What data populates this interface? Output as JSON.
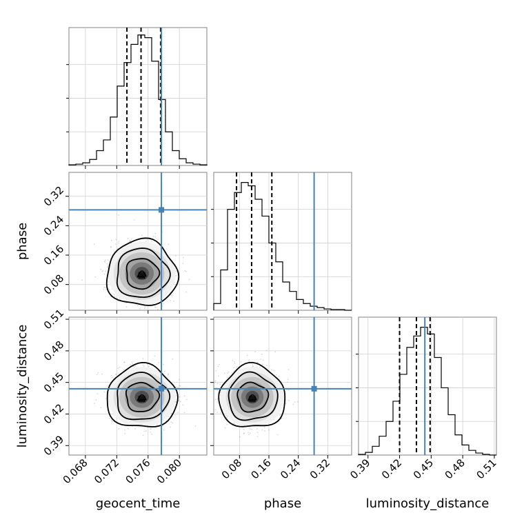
{
  "chart_data": {
    "type": "corner",
    "parameters": [
      {
        "name": "geocent_time",
        "label": "geocent_time",
        "range": [
          0.0659,
          0.0835
        ],
        "ticks": [
          0.068,
          0.072,
          0.076,
          0.08
        ],
        "tick_labels": [
          "0.068",
          "0.072",
          "0.076",
          "0.080"
        ],
        "injection": 0.0777,
        "quantiles": [
          0.0733,
          0.0751,
          0.0776
        ]
      },
      {
        "name": "phase",
        "label": "phase",
        "range": [
          0.01,
          0.385
        ],
        "ticks": [
          0.08,
          0.16,
          0.24,
          0.32
        ],
        "tick_labels": [
          "0.08",
          "0.16",
          "0.24",
          "0.32"
        ],
        "injection": 0.283,
        "quantiles": [
          0.072,
          0.113,
          0.168
        ]
      },
      {
        "name": "luminosity_distance",
        "label": "luminosity_distance",
        "range": [
          0.381,
          0.512
        ],
        "ticks": [
          0.39,
          0.42,
          0.45,
          0.48,
          0.51
        ],
        "tick_labels": [
          "0.39",
          "0.42",
          "0.45",
          "0.48",
          "0.51"
        ],
        "injection": 0.444,
        "quantiles": [
          0.42,
          0.436,
          0.449
        ]
      }
    ],
    "histograms": [
      {
        "parameter": "geocent_time",
        "bin_edges_range": [
          0.0659,
          0.0835
        ],
        "counts": [
          1,
          2,
          4,
          9,
          22,
          38,
          72,
          118,
          153,
          180,
          194,
          190,
          155,
          98,
          50,
          22,
          10,
          4,
          2,
          1
        ]
      },
      {
        "parameter": "phase",
        "bin_edges_range": [
          0.01,
          0.385
        ],
        "counts": [
          10,
          60,
          150,
          175,
          190,
          185,
          165,
          140,
          100,
          72,
          42,
          28,
          16,
          10,
          6,
          4,
          2,
          1,
          1,
          0
        ]
      },
      {
        "parameter": "luminosity_distance",
        "bin_edges_range": [
          0.381,
          0.512
        ],
        "counts": [
          1,
          4,
          13,
          28,
          50,
          80,
          120,
          160,
          177,
          190,
          180,
          145,
          100,
          60,
          30,
          15,
          7,
          3,
          1,
          0
        ]
      }
    ],
    "histogram_ylim": [
      0,
      205
    ],
    "posterior_2d": [
      {
        "x": "geocent_time",
        "y": "phase",
        "center": [
          0.0752,
          0.11
        ],
        "sigma": [
          0.0018,
          0.036
        ]
      },
      {
        "x": "geocent_time",
        "y": "luminosity_distance",
        "center": [
          0.0752,
          0.436
        ],
        "sigma": [
          0.0018,
          0.012
        ]
      },
      {
        "x": "phase",
        "y": "luminosity_distance",
        "center": [
          0.115,
          0.436
        ],
        "sigma": [
          0.036,
          0.012
        ]
      }
    ],
    "quantile_style": "dashed",
    "injection_color": "#4682b4",
    "grid": true
  }
}
